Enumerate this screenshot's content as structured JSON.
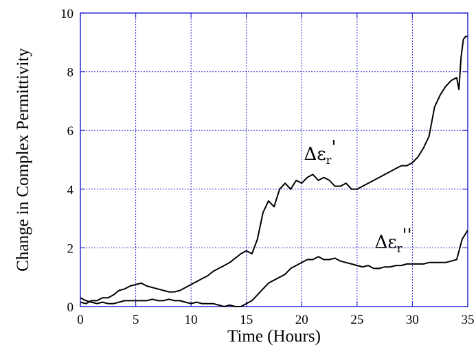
{
  "chart_data": {
    "type": "line",
    "title": "",
    "xlabel": "Time (Hours)",
    "ylabel": "Change in Complex Permittivity",
    "xlim": [
      0,
      35
    ],
    "ylim": [
      0,
      10
    ],
    "xticks": [
      0,
      5,
      10,
      15,
      20,
      25,
      30,
      35
    ],
    "yticks": [
      0,
      2,
      4,
      6,
      8,
      10
    ],
    "grid": true,
    "legend": "none",
    "colors": {
      "grid": "#2b2bd6",
      "frame": "#2b2bd6",
      "line": "#000000"
    },
    "annotations": [
      {
        "base": "Δε",
        "sub": "r",
        "sup": "'",
        "points_to": "upper curve"
      },
      {
        "base": "Δε",
        "sub": "r",
        "sup": "''",
        "points_to": "lower curve"
      }
    ],
    "series": [
      {
        "x": [
          0,
          0.5,
          1,
          1.5,
          2,
          2.5,
          3,
          3.5,
          4,
          4.5,
          5,
          5.5,
          6,
          6.5,
          7,
          7.5,
          8,
          8.5,
          9,
          9.5,
          10,
          10.5,
          11,
          11.5,
          12,
          12.5,
          13,
          13.5,
          14,
          14.5,
          15,
          15.5,
          16,
          16.5,
          17,
          17.5,
          18,
          18.5,
          19,
          19.5,
          20,
          20.5,
          21,
          21.5,
          22,
          22.5,
          23,
          23.5,
          24,
          24.5,
          25,
          25.5,
          26,
          26.5,
          27,
          27.5,
          28,
          28.5,
          29,
          29.5,
          30,
          30.5,
          31,
          31.5,
          32,
          32.5,
          33,
          33.5,
          34,
          34.2,
          34.4,
          34.6,
          34.8,
          35
        ],
        "values": [
          0.15,
          0.1,
          0.2,
          0.2,
          0.3,
          0.3,
          0.4,
          0.55,
          0.6,
          0.7,
          0.75,
          0.8,
          0.7,
          0.65,
          0.6,
          0.55,
          0.5,
          0.5,
          0.55,
          0.65,
          0.75,
          0.85,
          0.95,
          1.05,
          1.2,
          1.3,
          1.4,
          1.5,
          1.65,
          1.8,
          1.9,
          1.8,
          2.3,
          3.2,
          3.6,
          3.4,
          4.0,
          4.2,
          4.0,
          4.3,
          4.2,
          4.4,
          4.5,
          4.3,
          4.4,
          4.3,
          4.1,
          4.1,
          4.2,
          4.0,
          4.0,
          4.1,
          4.2,
          4.3,
          4.4,
          4.5,
          4.6,
          4.7,
          4.8,
          4.8,
          4.9,
          5.1,
          5.4,
          5.8,
          6.8,
          7.2,
          7.5,
          7.7,
          7.8,
          7.4,
          8.5,
          9.1,
          9.2,
          9.2
        ]
      },
      {
        "x": [
          0,
          0.5,
          1,
          1.5,
          2,
          2.5,
          3,
          3.5,
          4,
          4.5,
          5,
          5.5,
          6,
          6.5,
          7,
          7.5,
          8,
          8.5,
          9,
          9.5,
          10,
          10.5,
          11,
          11.5,
          12,
          12.5,
          13,
          13.5,
          14,
          14.5,
          15,
          15.5,
          16,
          16.5,
          17,
          17.5,
          18,
          18.5,
          19,
          19.5,
          20,
          20.5,
          21,
          21.5,
          22,
          22.5,
          23,
          23.5,
          24,
          24.5,
          25,
          25.5,
          26,
          26.5,
          27,
          27.5,
          28,
          28.5,
          29,
          29.5,
          30,
          30.5,
          31,
          31.5,
          32,
          32.5,
          33,
          33.5,
          34,
          34.5,
          35
        ],
        "values": [
          0.3,
          0.2,
          0.15,
          0.1,
          0.15,
          0.1,
          0.1,
          0.15,
          0.2,
          0.2,
          0.2,
          0.2,
          0.2,
          0.25,
          0.2,
          0.2,
          0.25,
          0.2,
          0.2,
          0.15,
          0.1,
          0.15,
          0.1,
          0.1,
          0.1,
          0.05,
          0.0,
          0.05,
          0.0,
          0.0,
          0.1,
          0.2,
          0.4,
          0.6,
          0.8,
          0.9,
          1.0,
          1.1,
          1.3,
          1.4,
          1.5,
          1.6,
          1.6,
          1.7,
          1.6,
          1.6,
          1.65,
          1.55,
          1.5,
          1.45,
          1.4,
          1.35,
          1.4,
          1.3,
          1.3,
          1.35,
          1.35,
          1.4,
          1.4,
          1.45,
          1.45,
          1.45,
          1.45,
          1.5,
          1.5,
          1.5,
          1.5,
          1.55,
          1.6,
          2.3,
          2.6
        ]
      }
    ]
  }
}
